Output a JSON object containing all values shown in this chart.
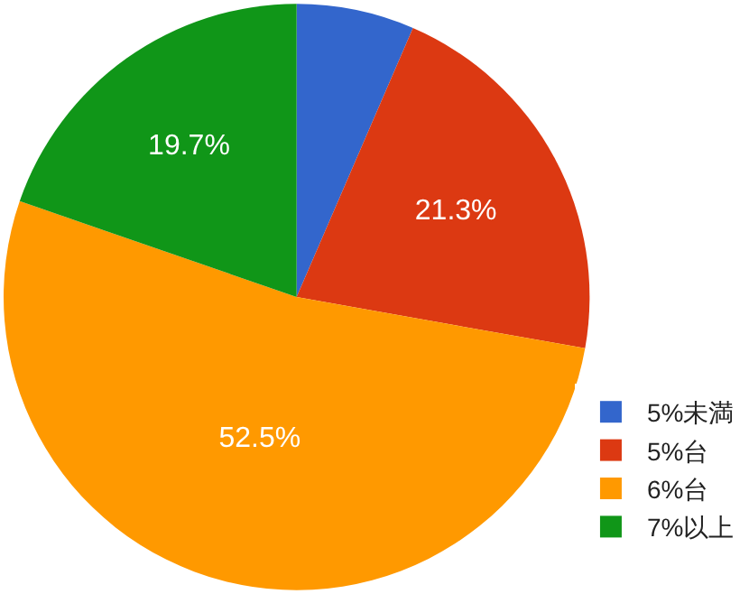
{
  "chart_data": {
    "type": "pie",
    "categories": [
      "5%未満",
      "5%台",
      "6%台",
      "7%以上"
    ],
    "values": [
      6.5,
      21.3,
      52.5,
      19.7
    ],
    "colors": [
      "#3366cc",
      "#dc3912",
      "#ff9900",
      "#109618"
    ],
    "value_labels": [
      null,
      "21.3%",
      "52.5%",
      "19.7%"
    ],
    "legend": "bottom right"
  }
}
